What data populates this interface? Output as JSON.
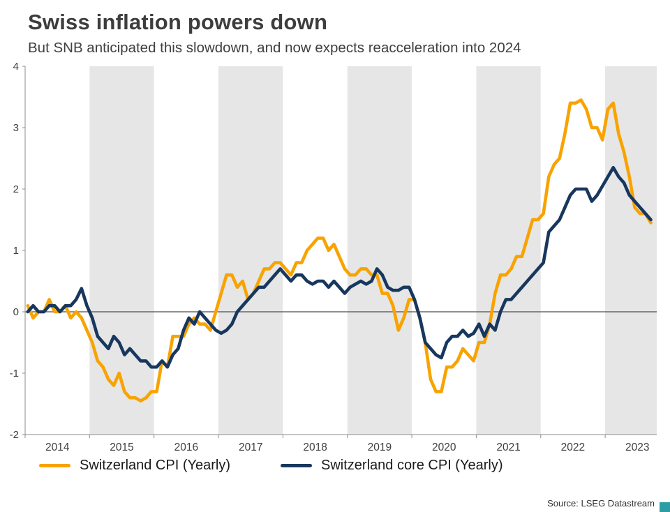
{
  "footer": {
    "source": "Source: LSEG Datastream",
    "brand_color": "#2B9EA5"
  },
  "chart_data": {
    "type": "line",
    "title": "Swiss inflation powers down",
    "subtitle": "But SNB anticipated this slowdown, and now expects reacceleration into 2024",
    "xlabel": "",
    "ylabel": "",
    "x_unit": "month",
    "start_month": "2014-01",
    "x_start": 2014.0,
    "xlim": [
      2014.0,
      2023.8
    ],
    "ylim": [
      -2,
      4
    ],
    "yticks": [
      4,
      3,
      2,
      1,
      0,
      -1,
      -2
    ],
    "xticks": [
      2014.5,
      2015.5,
      2016.5,
      2017.5,
      2018.5,
      2019.5,
      2020.5,
      2021.5,
      2022.5,
      2023.5
    ],
    "xtick_labels": [
      "2014",
      "2015",
      "2016",
      "2017",
      "2018",
      "2019",
      "2020",
      "2021",
      "2022",
      "2023"
    ],
    "shaded_years": [
      2015,
      2017,
      2019,
      2021,
      2023
    ],
    "band_color": "#e6e6e6",
    "axis_color": "#8c8c8c",
    "zero_line_color": "#4d4d4d",
    "text_color": "#404040",
    "grid": false,
    "legend_position": "bottom",
    "series": [
      {
        "name": "Switzerland CPI (Yearly)",
        "color": "#F8A300",
        "values": [
          0.1,
          -0.1,
          0.0,
          0.0,
          0.2,
          0.0,
          0.0,
          0.1,
          -0.1,
          0.0,
          -0.1,
          -0.3,
          -0.5,
          -0.8,
          -0.9,
          -1.1,
          -1.2,
          -1.0,
          -1.3,
          -1.4,
          -1.4,
          -1.45,
          -1.4,
          -1.3,
          -1.3,
          -0.8,
          -0.9,
          -0.4,
          -0.4,
          -0.4,
          -0.2,
          -0.1,
          -0.2,
          -0.2,
          -0.3,
          0.0,
          0.3,
          0.6,
          0.6,
          0.4,
          0.5,
          0.2,
          0.3,
          0.5,
          0.7,
          0.7,
          0.8,
          0.8,
          0.7,
          0.6,
          0.8,
          0.8,
          1.0,
          1.1,
          1.2,
          1.2,
          1.0,
          1.1,
          0.9,
          0.7,
          0.6,
          0.6,
          0.7,
          0.7,
          0.6,
          0.6,
          0.3,
          0.3,
          0.1,
          -0.3,
          -0.1,
          0.2,
          0.2,
          -0.1,
          -0.5,
          -1.1,
          -1.3,
          -1.3,
          -0.9,
          -0.9,
          -0.8,
          -0.6,
          -0.7,
          -0.8,
          -0.5,
          -0.5,
          -0.2,
          0.3,
          0.6,
          0.6,
          0.7,
          0.9,
          0.9,
          1.2,
          1.5,
          1.5,
          1.6,
          2.2,
          2.4,
          2.5,
          2.9,
          3.4,
          3.4,
          3.45,
          3.3,
          3.0,
          3.0,
          2.8,
          3.3,
          3.4,
          2.9,
          2.6,
          2.2,
          1.7,
          1.6,
          1.6,
          1.45
        ]
      },
      {
        "name": "Switzerland core CPI (Yearly)",
        "color": "#17375E",
        "values": [
          0.0,
          0.1,
          0.0,
          0.0,
          0.1,
          0.1,
          0.0,
          0.1,
          0.1,
          0.2,
          0.38,
          0.1,
          -0.1,
          -0.4,
          -0.5,
          -0.6,
          -0.4,
          -0.5,
          -0.7,
          -0.6,
          -0.7,
          -0.8,
          -0.8,
          -0.9,
          -0.9,
          -0.8,
          -0.9,
          -0.7,
          -0.6,
          -0.3,
          -0.1,
          -0.2,
          0.0,
          -0.1,
          -0.2,
          -0.3,
          -0.35,
          -0.3,
          -0.2,
          0.0,
          0.1,
          0.2,
          0.3,
          0.4,
          0.4,
          0.5,
          0.6,
          0.7,
          0.6,
          0.5,
          0.6,
          0.6,
          0.5,
          0.45,
          0.5,
          0.5,
          0.4,
          0.5,
          0.4,
          0.3,
          0.4,
          0.45,
          0.5,
          0.45,
          0.5,
          0.7,
          0.6,
          0.4,
          0.35,
          0.35,
          0.4,
          0.4,
          0.2,
          -0.1,
          -0.5,
          -0.6,
          -0.7,
          -0.75,
          -0.5,
          -0.4,
          -0.4,
          -0.3,
          -0.4,
          -0.35,
          -0.2,
          -0.4,
          -0.2,
          -0.3,
          0.0,
          0.2,
          0.2,
          0.3,
          0.4,
          0.5,
          0.6,
          0.7,
          0.8,
          1.3,
          1.4,
          1.5,
          1.7,
          1.9,
          2.0,
          2.0,
          2.0,
          1.8,
          1.9,
          2.05,
          2.2,
          2.35,
          2.2,
          2.1,
          1.9,
          1.8,
          1.7,
          1.6,
          1.5
        ]
      }
    ]
  }
}
